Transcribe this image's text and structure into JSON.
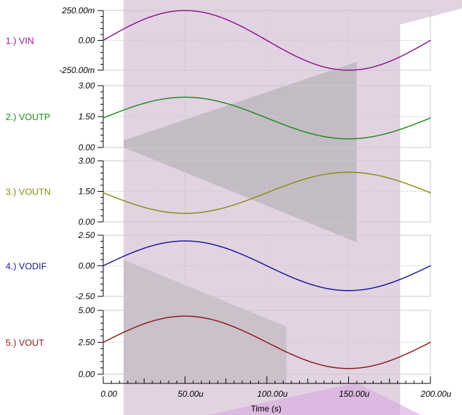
{
  "chart_data": {
    "type": "line",
    "xlabel": "Time (s)",
    "xlim": [
      0,
      200
    ],
    "x_tick_labels": [
      "0.00",
      "50.00u",
      "100.00u",
      "150.00u",
      "200.00u"
    ],
    "x_ticks": [
      0,
      50,
      100,
      150,
      200
    ],
    "grid": true,
    "panels": [
      {
        "name": "1.) VIN",
        "color": "#8b1a8b",
        "ylim": [
          -0.25,
          0.25
        ],
        "y_ticks": [
          0.25,
          0,
          -0.25
        ],
        "y_tick_labels": [
          "250.00m",
          "0.00",
          "-250.00m"
        ],
        "x": [
          0,
          25,
          50,
          75,
          100,
          125,
          150,
          175,
          200
        ],
        "values": [
          0,
          0.177,
          0.25,
          0.177,
          0,
          -0.177,
          -0.25,
          -0.177,
          0
        ]
      },
      {
        "name": "2.) VOUTP",
        "color": "#1e8c1e",
        "ylim": [
          0,
          3
        ],
        "y_ticks": [
          3,
          1.5,
          0
        ],
        "y_tick_labels": [
          "3.00",
          "1.50",
          "0.00"
        ],
        "x": [
          0,
          25,
          50,
          75,
          100,
          125,
          150,
          175,
          200
        ],
        "values": [
          1.43,
          2.14,
          2.44,
          2.14,
          1.43,
          0.72,
          0.42,
          0.72,
          1.43
        ]
      },
      {
        "name": "3.) VOUTN",
        "color": "#8c8c14",
        "ylim": [
          0,
          3
        ],
        "y_ticks": [
          3,
          1.5,
          0
        ],
        "y_tick_labels": [
          "3.00",
          "1.50",
          "0.00"
        ],
        "x": [
          0,
          25,
          50,
          75,
          100,
          125,
          150,
          175,
          200
        ],
        "values": [
          1.43,
          0.72,
          0.42,
          0.72,
          1.43,
          2.14,
          2.44,
          2.14,
          1.43
        ]
      },
      {
        "name": "4.) VODIF",
        "color": "#1a1a9a",
        "ylim": [
          -2.5,
          2.5
        ],
        "y_ticks": [
          2.5,
          0,
          -2.5
        ],
        "y_tick_labels": [
          "2.50",
          "0.00",
          "-2.50"
        ],
        "x": [
          0,
          25,
          50,
          75,
          100,
          125,
          150,
          175,
          200
        ],
        "values": [
          0,
          1.44,
          2.03,
          1.44,
          0,
          -1.44,
          -2.03,
          -1.44,
          0
        ]
      },
      {
        "name": "5.) VOUT",
        "color": "#8b1a1a",
        "ylim": [
          0,
          5
        ],
        "y_ticks": [
          5,
          2.5,
          0
        ],
        "y_tick_labels": [
          "5.00",
          "2.50",
          "0.00"
        ],
        "x": [
          0,
          25,
          50,
          75,
          100,
          125,
          150,
          175,
          200
        ],
        "values": [
          2.5,
          3.94,
          4.55,
          3.94,
          2.5,
          1.06,
          0.45,
          1.06,
          2.5
        ]
      }
    ]
  },
  "colors": {
    "grid": "#c8c8c8",
    "axis": "#000000",
    "overlay_purple": "#b48cb4",
    "overlay_gray": "#a0a0a0"
  }
}
